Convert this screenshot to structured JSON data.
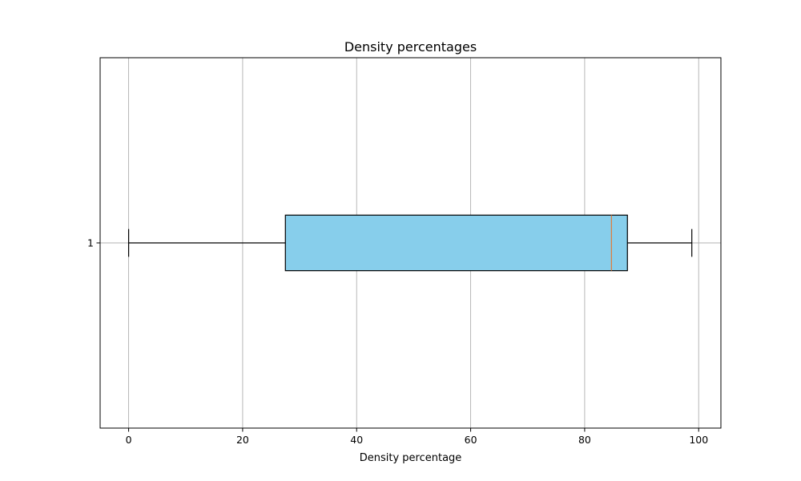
{
  "chart_data": {
    "type": "boxplot",
    "orientation": "horizontal",
    "title": "Density percentages",
    "xlabel": "Density percentage",
    "ylabel": "",
    "xlim": [
      -5,
      103.9
    ],
    "xticks": [
      0,
      20,
      40,
      60,
      80,
      100
    ],
    "grid": true,
    "box_color": "#87ceeb",
    "median_color": "#e07b39",
    "boxes": [
      {
        "label": "1",
        "whisker_low": 0,
        "q1": 27.5,
        "median": 84.7,
        "q3": 87.5,
        "whisker_high": 98.8
      }
    ]
  }
}
